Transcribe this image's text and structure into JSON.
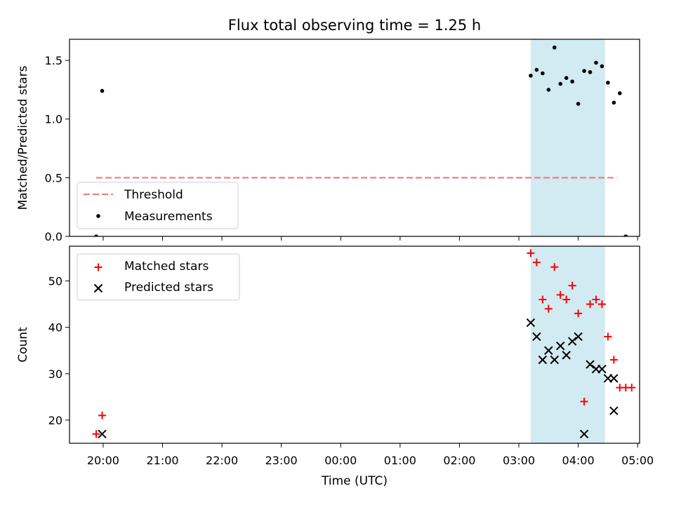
{
  "figure": {
    "title": "Flux total observing time = 1.25 h"
  },
  "chart_data": [
    {
      "type": "scatter",
      "ylabel": "Matched/Predicted stars",
      "ylim": [
        0,
        1.68
      ],
      "yticks": [
        0.0,
        0.5,
        1.0,
        1.5
      ],
      "ytick_labels": [
        "0.0",
        "0.5",
        "1.0",
        "1.5"
      ],
      "xlim": [
        "19:26",
        "05:02"
      ],
      "xticks": [
        "20:00",
        "21:00",
        "22:00",
        "23:00",
        "00:00",
        "01:00",
        "02:00",
        "03:00",
        "04:00",
        "05:00"
      ],
      "show_xtick_labels": false,
      "grid": false,
      "shaded_span": {
        "x_start": "03:12",
        "x_end": "04:27",
        "color": "#add8e6"
      },
      "threshold": {
        "name": "Threshold",
        "value": 0.5,
        "x_start": "19:53",
        "x_end": "04:39",
        "color": "#f08080",
        "style": "dashed"
      },
      "series": [
        {
          "name": "Measurements",
          "marker": "dot",
          "color": "#000000",
          "x": [
            "19:53",
            "19:59",
            "03:12",
            "03:18",
            "03:24",
            "03:30",
            "03:36",
            "03:42",
            "03:48",
            "03:54",
            "04:00",
            "04:06",
            "04:12",
            "04:18",
            "04:24",
            "04:30",
            "04:36",
            "04:42",
            "04:48"
          ],
          "y": [
            0.0,
            1.24,
            1.37,
            1.42,
            1.39,
            1.25,
            1.61,
            1.3,
            1.35,
            1.32,
            1.13,
            1.41,
            1.4,
            1.48,
            1.45,
            1.31,
            1.14,
            1.22,
            0.0
          ],
          "note": "last two points near 04:36 plotted at 0"
        }
      ],
      "legend": {
        "position": "lower-left",
        "entries": [
          "Threshold",
          "Measurements"
        ]
      }
    },
    {
      "type": "scatter",
      "ylabel": "Count",
      "xlabel": "Time (UTC)",
      "ylim": [
        15,
        57.5
      ],
      "yticks": [
        20,
        30,
        40,
        50
      ],
      "ytick_labels": [
        "20",
        "30",
        "40",
        "50"
      ],
      "xlim": [
        "19:26",
        "05:02"
      ],
      "xticks": [
        "20:00",
        "21:00",
        "22:00",
        "23:00",
        "00:00",
        "01:00",
        "02:00",
        "03:00",
        "04:00",
        "05:00"
      ],
      "xtick_labels": [
        "20:00",
        "21:00",
        "22:00",
        "23:00",
        "00:00",
        "01:00",
        "02:00",
        "03:00",
        "04:00",
        "05:00"
      ],
      "grid": false,
      "shaded_span": {
        "x_start": "03:12",
        "x_end": "04:27",
        "color": "#add8e6"
      },
      "series": [
        {
          "name": "Matched stars",
          "marker": "plus",
          "color": "#ff0000",
          "x": [
            "19:53",
            "19:59",
            "03:12",
            "03:18",
            "03:24",
            "03:30",
            "03:36",
            "03:42",
            "03:48",
            "03:54",
            "04:00",
            "04:06",
            "04:12",
            "04:18",
            "04:24",
            "04:30",
            "04:36",
            "04:42",
            "04:48",
            "04:54"
          ],
          "y": [
            17,
            21,
            56,
            54,
            46,
            44,
            53,
            47,
            46,
            49,
            43,
            24,
            45,
            46,
            45,
            38,
            33,
            27,
            27,
            27
          ]
        },
        {
          "name": "Predicted stars",
          "marker": "x",
          "color": "#000000",
          "x": [
            "19:59",
            "03:12",
            "03:18",
            "03:24",
            "03:30",
            "03:36",
            "03:42",
            "03:48",
            "03:54",
            "04:00",
            "04:06",
            "04:12",
            "04:18",
            "04:24",
            "04:30",
            "04:36"
          ],
          "y": [
            17,
            41,
            38,
            33,
            35,
            33,
            36,
            34,
            37,
            38,
            17,
            32,
            31,
            31,
            29,
            29
          ]
        },
        {
          "name": "Predicted stars (tail)",
          "marker": "x",
          "color": "#000000",
          "x": [
            "04:36"
          ],
          "y": [
            22
          ]
        }
      ],
      "legend": {
        "position": "upper-left",
        "entries": [
          "Matched stars",
          "Predicted stars"
        ]
      }
    }
  ]
}
